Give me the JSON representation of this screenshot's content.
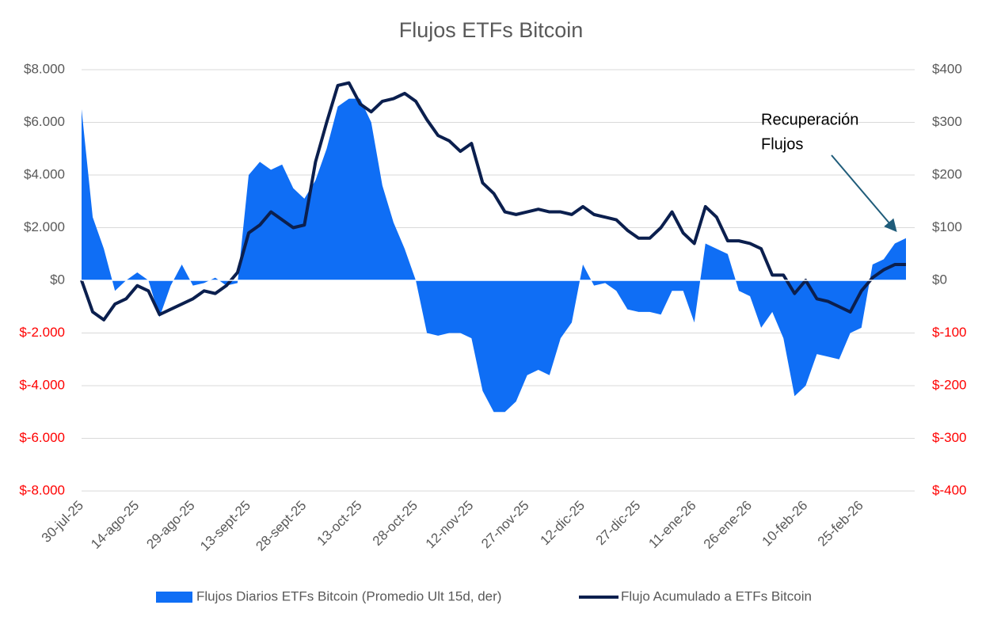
{
  "chart_data": {
    "type": "area-line",
    "title": "Flujos ETFs Bitcoin",
    "categories": [
      "30-jul-25",
      null,
      null,
      null,
      null,
      "14-ago-25",
      null,
      null,
      null,
      null,
      "29-ago-25",
      null,
      null,
      null,
      null,
      "13-sept-25",
      null,
      null,
      null,
      null,
      "28-sept-25",
      null,
      null,
      null,
      null,
      "13-oct-25",
      null,
      null,
      null,
      null,
      "28-oct-25",
      null,
      null,
      null,
      null,
      "12-nov-25",
      null,
      null,
      null,
      null,
      "27-nov-25",
      null,
      null,
      null,
      null,
      "12-dic-25",
      null,
      null,
      null,
      null,
      "27-dic-25",
      null,
      null,
      null,
      null,
      "11-ene-26",
      null,
      null,
      null,
      null,
      "26-ene-26",
      null,
      null,
      null,
      null,
      "10-feb-26",
      null,
      null,
      null,
      null,
      "25-feb-26",
      null,
      null,
      null,
      null
    ],
    "series": [
      {
        "name": "Flujos Diarios ETFs Bitcoin (Promedio Ult 15d, der)",
        "color": "#0f6ef5",
        "axis": "y2",
        "kind": "area",
        "values": [
          325,
          120,
          60,
          -20,
          0,
          15,
          0,
          -70,
          -10,
          30,
          -10,
          -5,
          5,
          -10,
          -5,
          200,
          225,
          210,
          220,
          175,
          155,
          190,
          250,
          330,
          345,
          345,
          300,
          180,
          110,
          60,
          0,
          -100,
          -105,
          -100,
          -100,
          -110,
          -210,
          -250,
          -250,
          -230,
          -180,
          -170,
          -180,
          -110,
          -80,
          30,
          -10,
          -5,
          -20,
          -55,
          -60,
          -60,
          -65,
          -20,
          -20,
          -80,
          70,
          60,
          50,
          -20,
          -30,
          -90,
          -60,
          -110,
          -220,
          -200,
          -140,
          -145,
          -150,
          -100,
          -90,
          30,
          40,
          70,
          80
        ]
      },
      {
        "name": "Flujo Acumulado a ETFs Bitcoin",
        "color": "#0b1f4e",
        "kind": "line",
        "values": [
          0,
          -1200,
          -1500,
          -900,
          -700,
          -200,
          -400,
          -1300,
          -1100,
          -900,
          -700,
          -400,
          -500,
          -200,
          300,
          1800,
          2100,
          2600,
          2300,
          2000,
          2100,
          4500,
          6000,
          7400,
          7500,
          6700,
          6400,
          6800,
          6900,
          7100,
          6800,
          6100,
          5500,
          5300,
          4900,
          5200,
          3700,
          3300,
          2600,
          2500,
          2600,
          2700,
          2600,
          2600,
          2500,
          2800,
          2500,
          2400,
          2300,
          1900,
          1600,
          1600,
          2000,
          2600,
          1800,
          1400,
          2800,
          2400,
          1500,
          1500,
          1400,
          1200,
          200,
          200,
          -500,
          0,
          -700,
          -800,
          -1000,
          -1200,
          -400,
          100,
          400,
          600,
          600
        ]
      }
    ],
    "ylim": [
      -8000,
      8000
    ],
    "yticks": [
      {
        "value": -8000,
        "label": "$-8.000"
      },
      {
        "value": -6000,
        "label": "$-6.000"
      },
      {
        "value": -4000,
        "label": "$-4.000"
      },
      {
        "value": -2000,
        "label": "$-2.000"
      },
      {
        "value": 0,
        "label": "$0"
      },
      {
        "value": 2000,
        "label": "$2.000"
      },
      {
        "value": 4000,
        "label": "$4.000"
      },
      {
        "value": 6000,
        "label": "$6.000"
      },
      {
        "value": 8000,
        "label": "$8.000"
      }
    ],
    "y2lim": [
      -400,
      400
    ],
    "y2ticks": [
      {
        "value": -400,
        "label": "$-400"
      },
      {
        "value": -300,
        "label": "$-300"
      },
      {
        "value": -200,
        "label": "$-200"
      },
      {
        "value": -100,
        "label": "$-100"
      },
      {
        "value": 0,
        "label": "$0"
      },
      {
        "value": 100,
        "label": "$100"
      },
      {
        "value": 200,
        "label": "$200"
      },
      {
        "value": 300,
        "label": "$300"
      },
      {
        "value": 400,
        "label": "$400"
      }
    ],
    "negative_tick_color": "#ff0000",
    "grid": true,
    "legend": "bottom",
    "annotation": {
      "lines": [
        "Recuperación",
        "Flujos"
      ],
      "arrow_color": "#1f5c7a"
    }
  }
}
